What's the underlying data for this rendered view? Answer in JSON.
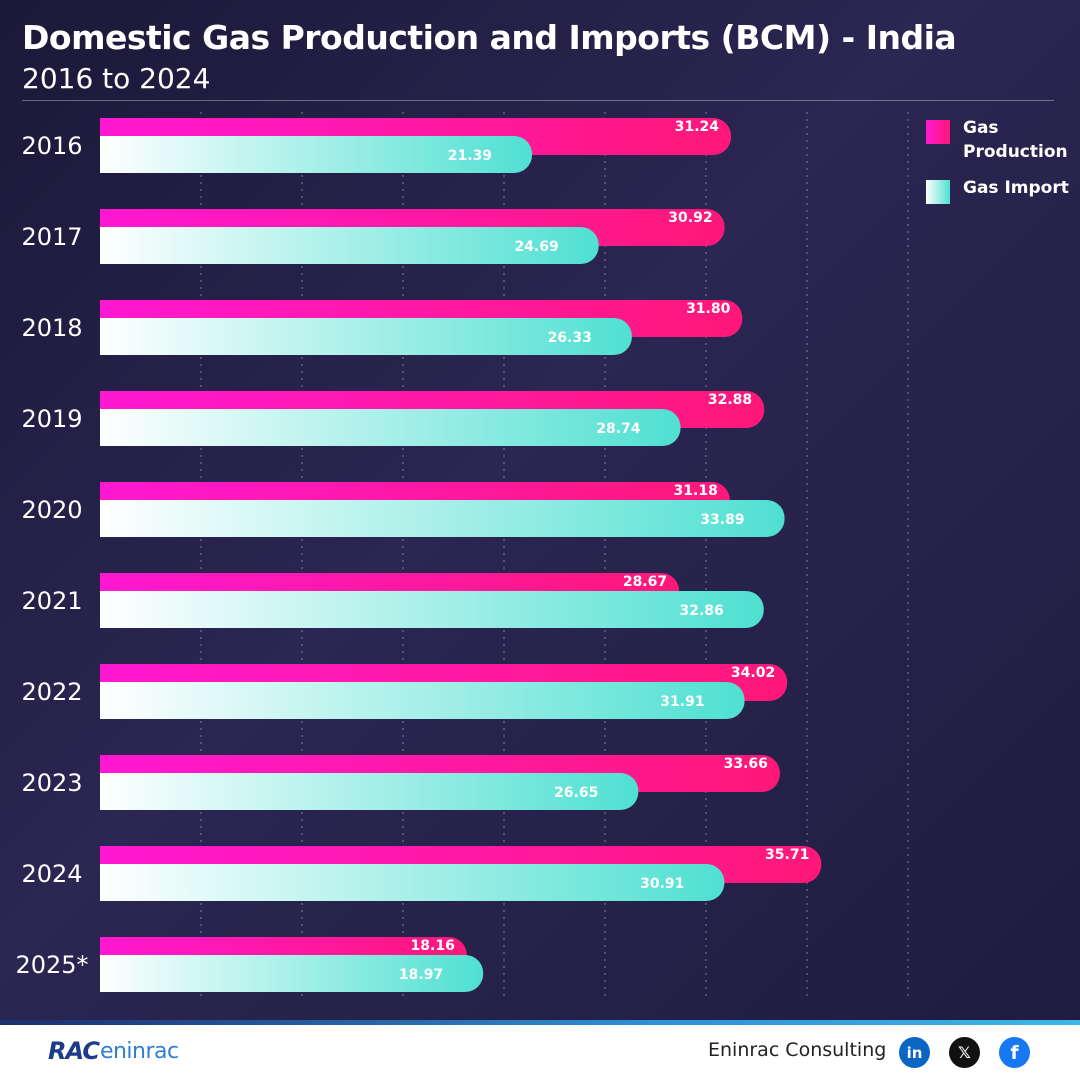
{
  "header": {
    "title": "Domestic Gas Production and Imports (BCM) - India",
    "subtitle": "2016 to 2024"
  },
  "legend": [
    {
      "label": "Gas Production",
      "color": "#ff1493"
    },
    {
      "label": "Gas Import",
      "color": "#5fe0d4"
    }
  ],
  "chart_data": {
    "type": "bar",
    "orientation": "horizontal",
    "title": "Domestic Gas Production and Imports (BCM) - India",
    "subtitle": "2016 to 2024",
    "categories": [
      "2016",
      "2017",
      "2018",
      "2019",
      "2020",
      "2021",
      "2022",
      "2023",
      "2024",
      "2025*"
    ],
    "series": [
      {
        "name": "Gas Production",
        "color": "#ff1493",
        "values": [
          31.24,
          30.92,
          31.8,
          32.88,
          31.18,
          28.67,
          34.02,
          33.66,
          35.71,
          18.16
        ]
      },
      {
        "name": "Gas Import",
        "color": "#5fe0d4",
        "values": [
          21.39,
          24.69,
          26.33,
          28.74,
          33.89,
          32.86,
          31.91,
          26.65,
          30.91,
          18.97
        ]
      }
    ],
    "value_labels": {
      "Gas Production": [
        "31.24",
        "30.92",
        "31.80",
        "32.88",
        "31.18",
        "28.67",
        "34.02",
        "33.66",
        "35.71",
        "18.16"
      ],
      "Gas Import": [
        "21.39",
        "24.69",
        "26.33",
        "28.74",
        "33.89",
        "32.86",
        "31.91",
        "26.65",
        "30.91",
        "18.97"
      ]
    },
    "xlim": [
      0,
      40
    ],
    "grid": "vertical dotted",
    "legend_position": "top-right"
  },
  "footer": {
    "logo_mark": "RAC",
    "logo_word": "eninrac",
    "company": "Eninrac Consulting",
    "social": [
      {
        "icon": "linkedin-icon",
        "glyph": "in",
        "color": "#0a66c2"
      },
      {
        "icon": "x-icon",
        "glyph": "𝕏",
        "color": "#111111"
      },
      {
        "icon": "facebook-icon",
        "glyph": "f",
        "color": "#1877f2"
      }
    ]
  }
}
